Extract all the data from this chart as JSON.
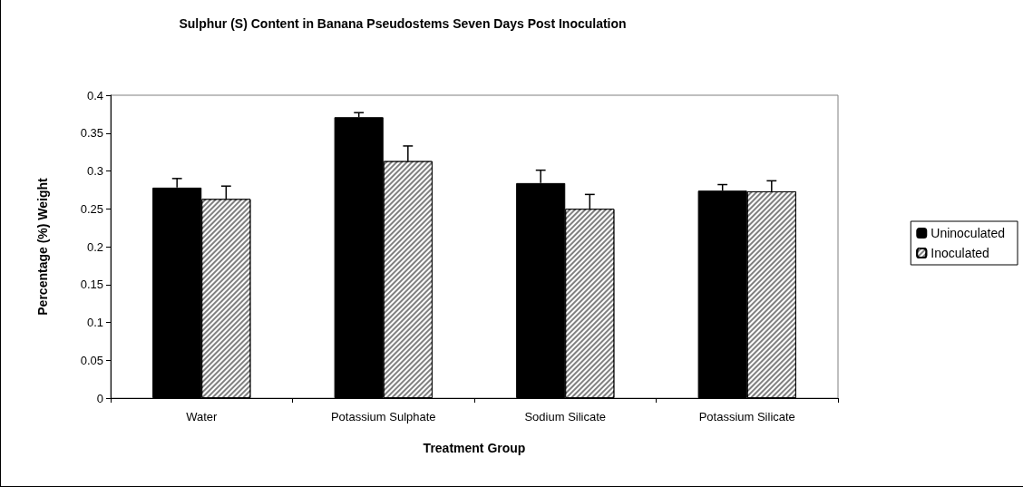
{
  "chart_data": {
    "type": "bar",
    "title": "Sulphur (S) Content in Banana Pseudostems Seven Days Post Inoculation",
    "xlabel": "Treatment Group",
    "ylabel": "Percentage (%) Weight",
    "categories": [
      "Water",
      "Potassium Sulphate",
      "Sodium Silicate",
      "Potassium Silicate"
    ],
    "series": [
      {
        "name": "Uninoculated",
        "color": "#000000",
        "values": [
          0.278,
          0.371,
          0.284,
          0.274
        ],
        "errors": [
          0.012,
          0.006,
          0.017,
          0.008
        ]
      },
      {
        "name": "Inoculated",
        "color": "#808080",
        "values": [
          0.263,
          0.313,
          0.25,
          0.273
        ],
        "errors": [
          0.017,
          0.02,
          0.019,
          0.014
        ]
      }
    ],
    "ylim": [
      0,
      0.4
    ],
    "yticks": [
      0,
      0.05,
      0.1,
      0.15,
      0.2,
      0.25,
      0.3,
      0.35,
      0.4
    ],
    "grid": false,
    "legend": "right"
  }
}
